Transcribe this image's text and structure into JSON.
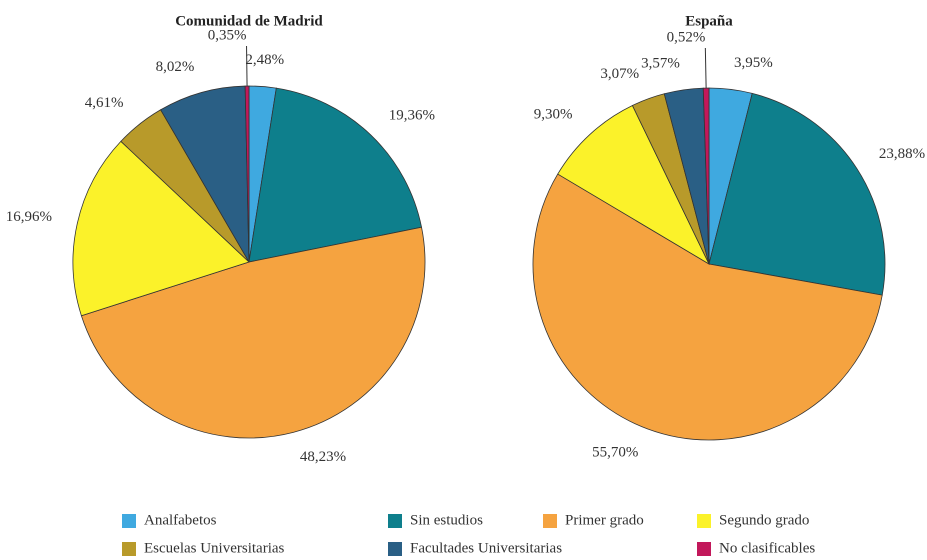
{
  "chart_data": [
    {
      "type": "pie",
      "title": "Comunidad de Madrid",
      "categories": [
        "Analfabetos",
        "Sin estudios",
        "Primer grado",
        "Segundo grado",
        "Escuelas Universitarias",
        "Facultades Universitarias",
        "No clasificables"
      ],
      "colors": [
        "#3fa9e0",
        "#0e7f8c",
        "#f5a340",
        "#fbf22a",
        "#b89a2a",
        "#2a5f85",
        "#c2185b"
      ],
      "values": [
        2.48,
        19.36,
        48.23,
        16.96,
        4.61,
        8.02,
        0.35
      ],
      "value_labels": [
        "2,48%",
        "19,36%",
        "48,23%",
        "16,96%",
        "4,61%",
        "8,02%",
        "0,35%"
      ]
    },
    {
      "type": "pie",
      "title": "España",
      "categories": [
        "Analfabetos",
        "Sin estudios",
        "Primer grado",
        "Segundo grado",
        "Escuelas Universitarias",
        "Facultades Universitarias",
        "No clasificables"
      ],
      "colors": [
        "#3fa9e0",
        "#0e7f8c",
        "#f5a340",
        "#fbf22a",
        "#b89a2a",
        "#2a5f85",
        "#c2185b"
      ],
      "values": [
        3.95,
        23.88,
        55.7,
        9.3,
        3.07,
        3.57,
        0.52
      ],
      "value_labels": [
        "3,95%",
        "23,88%",
        "55,70%",
        "9,30%",
        "3,07%",
        "3,57%",
        "0,52%"
      ]
    }
  ]
}
